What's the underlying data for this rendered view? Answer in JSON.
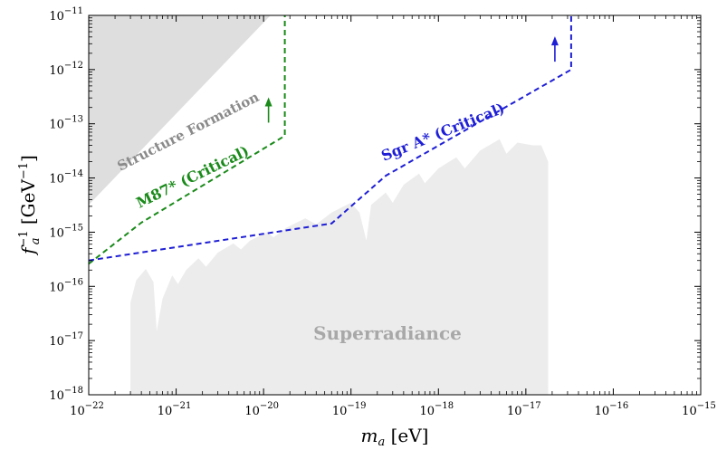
{
  "chart_data": {
    "type": "line",
    "xscale": "log",
    "yscale": "log",
    "xlim": [
      1e-22,
      1e-15
    ],
    "ylim": [
      1e-18,
      1e-11
    ],
    "xlabel": "m_a [eV]",
    "ylabel": "f_a^{-1} [GeV^{-1}]",
    "x_ticks": [
      {
        "base": "10",
        "exp": "−22",
        "value": 1e-22
      },
      {
        "base": "10",
        "exp": "−21",
        "value": 1e-21
      },
      {
        "base": "10",
        "exp": "−20",
        "value": 1e-20
      },
      {
        "base": "10",
        "exp": "−19",
        "value": 1e-19
      },
      {
        "base": "10",
        "exp": "−18",
        "value": 1e-18
      },
      {
        "base": "10",
        "exp": "−17",
        "value": 1e-17
      },
      {
        "base": "10",
        "exp": "−16",
        "value": 1e-16
      },
      {
        "base": "10",
        "exp": "−15",
        "value": 1e-15
      }
    ],
    "y_ticks": [
      {
        "base": "10",
        "exp": "−18",
        "value": 1e-18
      },
      {
        "base": "10",
        "exp": "−17",
        "value": 1e-17
      },
      {
        "base": "10",
        "exp": "−16",
        "value": 1e-16
      },
      {
        "base": "10",
        "exp": "−15",
        "value": 1e-15
      },
      {
        "base": "10",
        "exp": "−14",
        "value": 1e-14
      },
      {
        "base": "10",
        "exp": "−13",
        "value": 1e-13
      },
      {
        "base": "10",
        "exp": "−12",
        "value": 1e-12
      },
      {
        "base": "10",
        "exp": "−11",
        "value": 1e-11
      }
    ],
    "series": [
      {
        "name": "M87* (Critical)",
        "color": "#1a8a1a",
        "style": "dashed",
        "points": [
          [
            1e-22,
            2.6e-16
          ],
          [
            4e-22,
            1.5e-15
          ],
          [
            1.75e-20,
            6e-14
          ],
          [
            1.75e-20,
            1e-11
          ]
        ]
      },
      {
        "name": "Sgr A* (Critical)",
        "color": "#1f1fd6",
        "style": "dashed",
        "points": [
          [
            1e-22,
            3e-16
          ],
          [
            6e-20,
            1.45e-15
          ],
          [
            2.5e-19,
            1.1e-14
          ],
          [
            3.3e-17,
            1e-12
          ],
          [
            3.3e-17,
            1e-11
          ]
        ]
      }
    ],
    "regions": [
      {
        "name": "Structure Formation",
        "color": "#dedede",
        "points": [
          [
            1e-22,
            3.2e-15
          ],
          [
            1e-22,
            1e-11
          ],
          [
            1.2e-20,
            1e-11
          ]
        ]
      },
      {
        "name": "Superradiance",
        "color": "#ececec",
        "top": [
          [
            3e-22,
            1e-18
          ],
          [
            3e-22,
            5e-17
          ],
          [
            3.5e-22,
            1.3e-16
          ],
          [
            4.5e-22,
            2.1e-16
          ],
          [
            5.5e-22,
            1.2e-16
          ],
          [
            6e-22,
            1.5e-17
          ],
          [
            7e-22,
            6e-17
          ],
          [
            9e-22,
            1.6e-16
          ],
          [
            1.05e-21,
            1.1e-16
          ],
          [
            1.3e-21,
            2e-16
          ],
          [
            1.8e-21,
            3.3e-16
          ],
          [
            2.2e-21,
            2.3e-16
          ],
          [
            3e-21,
            4.2e-16
          ],
          [
            4.5e-21,
            6.2e-16
          ],
          [
            5.5e-21,
            4.8e-16
          ],
          [
            7e-21,
            7e-16
          ],
          [
            1.1e-20,
            1e-15
          ],
          [
            1.3e-20,
            8e-16
          ],
          [
            1.8e-20,
            1.2e-15
          ],
          [
            3e-20,
            1.8e-15
          ],
          [
            4e-20,
            1.4e-15
          ],
          [
            6e-20,
            2.3e-15
          ],
          [
            1e-19,
            3.5e-15
          ],
          [
            1.25e-19,
            2.3e-15
          ],
          [
            1.5e-19,
            7e-16
          ],
          [
            1.7e-19,
            3.2e-15
          ],
          [
            2.5e-19,
            5.4e-15
          ],
          [
            3e-19,
            3.5e-15
          ],
          [
            4e-19,
            7.5e-15
          ],
          [
            6e-19,
            1.2e-14
          ],
          [
            7e-19,
            8e-15
          ],
          [
            1e-18,
            1.5e-14
          ],
          [
            1.6e-18,
            2.4e-14
          ],
          [
            2e-18,
            1.5e-14
          ],
          [
            3e-18,
            3.2e-14
          ],
          [
            5e-18,
            5.2e-14
          ],
          [
            6e-18,
            2.8e-14
          ],
          [
            8e-18,
            4.5e-14
          ],
          [
            1.2e-17,
            4e-14
          ],
          [
            1.5e-17,
            4e-14
          ],
          [
            1.8e-17,
            2e-14
          ],
          [
            1.8e-17,
            1e-18
          ]
        ]
      }
    ],
    "annotations": [
      {
        "text": "Structure Formation",
        "color": "#8a8a8a"
      },
      {
        "text": "M87* (Critical)",
        "color": "#1a8a1a"
      },
      {
        "text": "Sgr A* (Critical)",
        "color": "#1f1fd6"
      },
      {
        "text": "Superradiance",
        "color": "#a8a8a8"
      }
    ]
  }
}
